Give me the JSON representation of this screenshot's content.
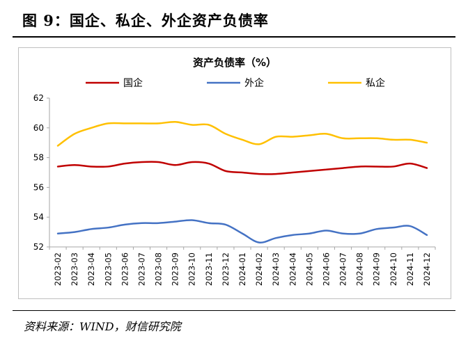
{
  "figure": {
    "title": "图 9：国企、私企、外企资产负债率",
    "source": "资料来源：WIND，财信研究院"
  },
  "chart_data": {
    "type": "line",
    "title": "资产负债率（%）",
    "xlabel": "",
    "ylabel": "",
    "ylim": [
      52,
      62
    ],
    "yticks": [
      52,
      54,
      56,
      58,
      60,
      62
    ],
    "grid": false,
    "legend_position": "top",
    "x": [
      "2023-02",
      "2023-03",
      "2023-04",
      "2023-05",
      "2023-06",
      "2023-07",
      "2023-08",
      "2023-09",
      "2023-10",
      "2023-11",
      "2023-12",
      "2024-01",
      "2024-02",
      "2024-03",
      "2024-04",
      "2024-05",
      "2024-06",
      "2024-07",
      "2024-08",
      "2024-09",
      "2024-10",
      "2024-11",
      "2024-12"
    ],
    "series": [
      {
        "name": "国企",
        "color": "#C00000",
        "values": [
          57.4,
          57.5,
          57.4,
          57.4,
          57.6,
          57.7,
          57.7,
          57.5,
          57.7,
          57.6,
          57.1,
          57.0,
          56.9,
          56.9,
          57.0,
          57.1,
          57.2,
          57.3,
          57.4,
          57.4,
          57.4,
          57.6,
          57.3
        ]
      },
      {
        "name": "外企",
        "color": "#4472C4",
        "values": [
          52.9,
          53.0,
          53.2,
          53.3,
          53.5,
          53.6,
          53.6,
          53.7,
          53.8,
          53.6,
          53.5,
          52.9,
          52.3,
          52.6,
          52.8,
          52.9,
          53.1,
          52.9,
          52.9,
          53.2,
          53.3,
          53.4,
          52.8
        ]
      },
      {
        "name": "私企",
        "color": "#FFC000",
        "values": [
          58.8,
          59.6,
          60.0,
          60.3,
          60.3,
          60.3,
          60.3,
          60.4,
          60.2,
          60.2,
          59.6,
          59.2,
          58.9,
          59.4,
          59.4,
          59.5,
          59.6,
          59.3,
          59.3,
          59.3,
          59.2,
          59.2,
          59.0
        ]
      }
    ]
  }
}
